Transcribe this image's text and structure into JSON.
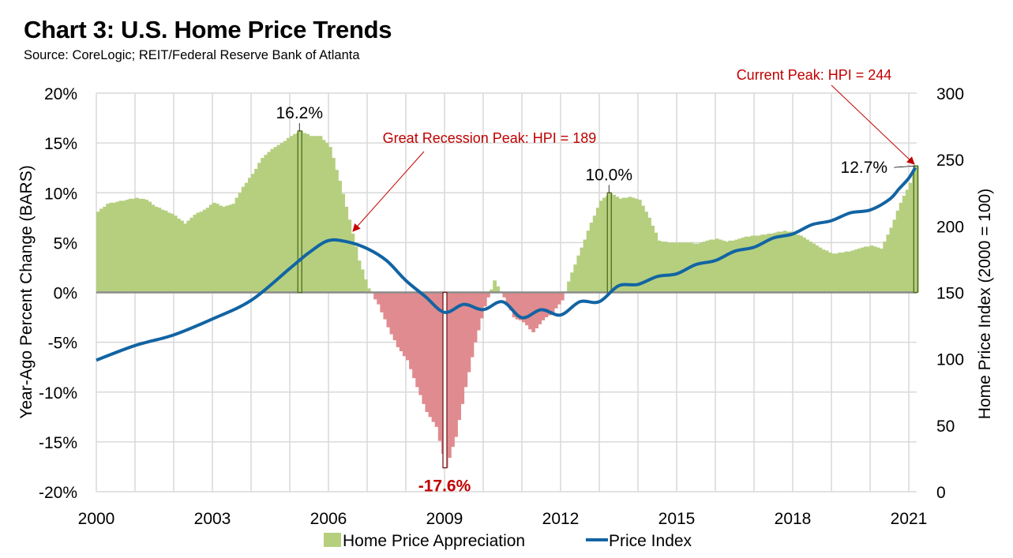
{
  "header": {
    "title": "Chart 3: U.S. Home Price Trends",
    "source": "Source: CoreLogic; REIT/Federal Reserve Bank of Atlanta"
  },
  "colors": {
    "positive_bar": "#b5cf7f",
    "negative_bar": "#e08b8f",
    "line": "#1264a3",
    "annotation": "#c00000",
    "highlight_bar_border": "#4f6b1f",
    "grid": "#d9d9d9"
  },
  "chart_data": {
    "type": "bar+line",
    "title": "Chart 3: U.S. Home Price Trends",
    "xlabel": "",
    "ylabel": "Year-Ago Percent Change (BARS)",
    "y2label": "Home Price Index (2000 = 100)",
    "ylim": [
      -20,
      20
    ],
    "y2lim": [
      0,
      300
    ],
    "yticks": [
      "20%",
      "15%",
      "10%",
      "5%",
      "0%",
      "-5%",
      "-10%",
      "-15%",
      "-20%"
    ],
    "y2ticks": [
      "300",
      "250",
      "200",
      "150",
      "100",
      "50",
      "0"
    ],
    "xticks": [
      "2000",
      "2003",
      "2006",
      "2009",
      "2012",
      "2015",
      "2018",
      "2021"
    ],
    "xlim": [
      2000,
      2021.2
    ],
    "grid": true,
    "legend_position": "bottom",
    "legend": [
      {
        "label": "Home Price Appreciation",
        "type": "bar"
      },
      {
        "label": "Price Index",
        "type": "line"
      }
    ],
    "series": [
      {
        "name": "Home Price Appreciation",
        "axis": "left",
        "unit": "percent",
        "x": [
          2000.0,
          2000.25,
          2000.5,
          2000.75,
          2001.0,
          2001.25,
          2001.5,
          2001.75,
          2002.0,
          2002.25,
          2002.5,
          2002.75,
          2003.0,
          2003.25,
          2003.5,
          2003.75,
          2004.0,
          2004.25,
          2004.5,
          2004.75,
          2005.0,
          2005.25,
          2005.5,
          2005.75,
          2006.0,
          2006.25,
          2006.5,
          2006.75,
          2007.0,
          2007.25,
          2007.5,
          2007.75,
          2008.0,
          2008.25,
          2008.5,
          2008.75,
          2009.0,
          2009.25,
          2009.5,
          2009.75,
          2010.0,
          2010.25,
          2010.5,
          2010.75,
          2011.0,
          2011.25,
          2011.5,
          2011.75,
          2012.0,
          2012.25,
          2012.5,
          2012.75,
          2013.0,
          2013.25,
          2013.5,
          2013.75,
          2014.0,
          2014.25,
          2014.5,
          2014.75,
          2015.0,
          2015.25,
          2015.5,
          2015.75,
          2016.0,
          2016.25,
          2016.5,
          2016.75,
          2017.0,
          2017.25,
          2017.5,
          2017.75,
          2018.0,
          2018.25,
          2018.5,
          2018.75,
          2019.0,
          2019.25,
          2019.5,
          2019.75,
          2020.0,
          2020.25,
          2020.5,
          2020.75,
          2021.0,
          2021.17
        ],
        "values": [
          8.1,
          8.9,
          9.1,
          9.3,
          9.5,
          9.3,
          8.6,
          8.2,
          7.7,
          6.9,
          7.8,
          8.3,
          9.0,
          8.6,
          8.9,
          10.6,
          11.9,
          13.5,
          14.4,
          15.0,
          15.7,
          16.2,
          15.7,
          15.7,
          14.6,
          11.2,
          7.3,
          3.2,
          0.4,
          -1.2,
          -3.5,
          -5.5,
          -6.8,
          -9.5,
          -12.0,
          -13.5,
          -17.6,
          -14.5,
          -9.5,
          -5.0,
          -1.4,
          1.2,
          -0.5,
          -2.5,
          -3.0,
          -4.0,
          -2.8,
          -2.0,
          -0.8,
          2.0,
          4.5,
          7.0,
          9.2,
          10.0,
          9.4,
          9.6,
          9.3,
          7.5,
          5.2,
          5.0,
          5.0,
          5.0,
          4.9,
          5.2,
          5.4,
          5.1,
          5.3,
          5.6,
          5.7,
          5.8,
          6.0,
          6.2,
          6.0,
          5.5,
          4.9,
          4.3,
          3.9,
          4.0,
          4.2,
          4.5,
          4.7,
          4.4,
          6.5,
          9.0,
          11.0,
          12.7
        ]
      },
      {
        "name": "Price Index",
        "axis": "right",
        "unit": "index (2000 = 100)",
        "x": [
          2000.0,
          2001.0,
          2002.0,
          2003.0,
          2004.0,
          2005.0,
          2005.5,
          2006.0,
          2006.5,
          2007.0,
          2007.5,
          2008.0,
          2008.5,
          2009.0,
          2009.5,
          2010.0,
          2010.5,
          2011.0,
          2011.5,
          2012.0,
          2012.5,
          2013.0,
          2013.5,
          2014.0,
          2014.5,
          2015.0,
          2015.5,
          2016.0,
          2016.5,
          2017.0,
          2017.5,
          2018.0,
          2018.5,
          2019.0,
          2019.5,
          2020.0,
          2020.5,
          2020.75,
          2021.0,
          2021.17
        ],
        "values": [
          99,
          110,
          118,
          130,
          144,
          168,
          180,
          189,
          188,
          183,
          174,
          159,
          147,
          135,
          141,
          137,
          143,
          131,
          137,
          133,
          143,
          143,
          155,
          156,
          162,
          164,
          171,
          174,
          181,
          184,
          191,
          194,
          201,
          204,
          210,
          212,
          220,
          228,
          236,
          244
        ]
      }
    ],
    "highlights": [
      {
        "x": 2005.25,
        "value": 16.2,
        "label": "16.2%"
      },
      {
        "x": 2009.0,
        "value": -17.6,
        "label": "-17.6%"
      },
      {
        "x": 2013.25,
        "value": 10.0,
        "label": "10.0%"
      },
      {
        "x": 2021.17,
        "value": 12.7,
        "label": "12.7%"
      }
    ],
    "annotations": [
      {
        "text": "Great Recession Peak: HPI = 189",
        "points_to_x": 2006.5,
        "points_to_hpi": 189
      },
      {
        "text": "Current Peak: HPI = 244",
        "points_to_x": 2021.17,
        "points_to_hpi": 244
      }
    ]
  }
}
